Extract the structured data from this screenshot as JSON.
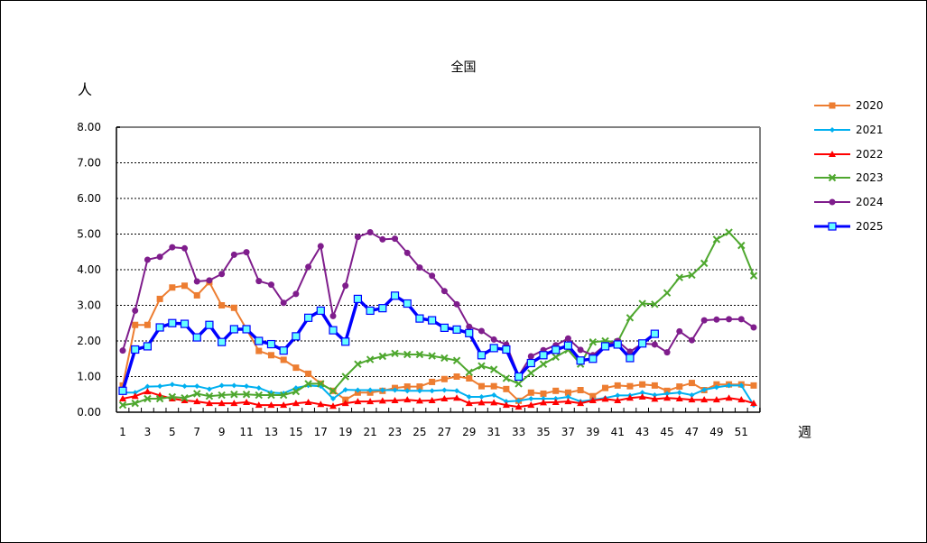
{
  "chart_data": {
    "type": "line",
    "title": "全国",
    "xlabel": "週",
    "ylabel": "人",
    "ylim": [
      0,
      8
    ],
    "yticks": [
      "0.00",
      "1.00",
      "2.00",
      "3.00",
      "4.00",
      "5.00",
      "6.00",
      "7.00",
      "8.00"
    ],
    "xtick_labels": [
      "1",
      "3",
      "5",
      "7",
      "9",
      "11",
      "13",
      "15",
      "17",
      "19",
      "21",
      "23",
      "25",
      "27",
      "29",
      "31",
      "33",
      "35",
      "37",
      "39",
      "41",
      "43",
      "45",
      "47",
      "49",
      "51"
    ],
    "x": [
      1,
      2,
      3,
      4,
      5,
      6,
      7,
      8,
      9,
      10,
      11,
      12,
      13,
      14,
      15,
      16,
      17,
      18,
      19,
      20,
      21,
      22,
      23,
      24,
      25,
      26,
      27,
      28,
      29,
      30,
      31,
      32,
      33,
      34,
      35,
      36,
      37,
      38,
      39,
      40,
      41,
      42,
      43,
      44,
      45,
      46,
      47,
      48,
      49,
      50,
      51,
      52
    ],
    "grid": true,
    "legend_position": "right",
    "series": [
      {
        "name": "2020",
        "color": "#ED7D31",
        "marker": "square",
        "values": [
          0.75,
          2.45,
          2.45,
          3.18,
          3.5,
          3.55,
          3.28,
          3.65,
          3.0,
          2.93,
          2.33,
          1.72,
          1.6,
          1.47,
          1.25,
          1.08,
          0.8,
          0.6,
          0.35,
          0.55,
          0.55,
          0.6,
          0.68,
          0.72,
          0.72,
          0.85,
          0.93,
          1.0,
          0.95,
          0.73,
          0.73,
          0.65,
          0.32,
          0.55,
          0.52,
          0.6,
          0.55,
          0.62,
          0.45,
          0.68,
          0.75,
          0.73,
          0.78,
          0.75,
          0.6,
          0.72,
          0.82,
          0.62,
          0.78,
          0.78,
          0.78,
          0.75
        ]
      },
      {
        "name": "2021",
        "color": "#00B0F0",
        "marker": "diamond",
        "values": [
          0.55,
          0.55,
          0.72,
          0.73,
          0.78,
          0.73,
          0.73,
          0.65,
          0.75,
          0.75,
          0.73,
          0.68,
          0.55,
          0.53,
          0.68,
          0.75,
          0.73,
          0.38,
          0.63,
          0.62,
          0.62,
          0.62,
          0.62,
          0.6,
          0.6,
          0.6,
          0.62,
          0.6,
          0.43,
          0.43,
          0.48,
          0.3,
          0.32,
          0.38,
          0.38,
          0.38,
          0.43,
          0.3,
          0.35,
          0.4,
          0.47,
          0.47,
          0.55,
          0.48,
          0.52,
          0.55,
          0.48,
          0.63,
          0.7,
          0.75,
          0.75,
          0.2
        ]
      },
      {
        "name": "2022",
        "color": "#FF0000",
        "marker": "triangle",
        "values": [
          0.38,
          0.45,
          0.58,
          0.47,
          0.38,
          0.33,
          0.3,
          0.25,
          0.25,
          0.25,
          0.28,
          0.2,
          0.2,
          0.2,
          0.25,
          0.28,
          0.22,
          0.17,
          0.25,
          0.3,
          0.3,
          0.32,
          0.33,
          0.35,
          0.32,
          0.33,
          0.38,
          0.4,
          0.25,
          0.27,
          0.27,
          0.2,
          0.15,
          0.2,
          0.27,
          0.28,
          0.3,
          0.25,
          0.33,
          0.37,
          0.33,
          0.4,
          0.43,
          0.37,
          0.4,
          0.38,
          0.35,
          0.35,
          0.35,
          0.4,
          0.35,
          0.25
        ]
      },
      {
        "name": "2023",
        "color": "#4EA72E",
        "marker": "x",
        "values": [
          0.2,
          0.25,
          0.38,
          0.38,
          0.43,
          0.4,
          0.52,
          0.45,
          0.48,
          0.5,
          0.5,
          0.48,
          0.48,
          0.48,
          0.58,
          0.8,
          0.8,
          0.6,
          1.0,
          1.35,
          1.48,
          1.57,
          1.65,
          1.62,
          1.62,
          1.58,
          1.52,
          1.45,
          1.12,
          1.3,
          1.2,
          0.95,
          0.8,
          1.1,
          1.35,
          1.55,
          1.75,
          1.35,
          1.97,
          2.0,
          1.97,
          2.65,
          3.05,
          3.03,
          3.35,
          3.78,
          3.85,
          4.18,
          4.85,
          5.05,
          4.68,
          3.83
        ]
      },
      {
        "name": "2024",
        "color": "#7F1D8C",
        "marker": "circle",
        "values": [
          1.73,
          2.85,
          4.28,
          4.36,
          4.63,
          4.6,
          3.67,
          3.7,
          3.88,
          4.42,
          4.49,
          3.68,
          3.58,
          3.07,
          3.32,
          4.08,
          4.66,
          2.7,
          3.55,
          4.92,
          5.05,
          4.85,
          4.87,
          4.47,
          4.06,
          3.83,
          3.4,
          3.03,
          2.4,
          2.28,
          2.04,
          1.9,
          1.02,
          1.57,
          1.74,
          1.88,
          2.07,
          1.75,
          1.6,
          1.88,
          2.0,
          1.7,
          1.93,
          1.9,
          1.68,
          2.27,
          2.02,
          2.58,
          2.6,
          2.61,
          2.61,
          2.38
        ]
      },
      {
        "name": "2025",
        "color": "#0000FF",
        "marker": "square-open",
        "marker_fill": "#66FFFF",
        "values": [
          0.6,
          1.76,
          1.85,
          2.38,
          2.5,
          2.48,
          2.1,
          2.45,
          1.97,
          2.33,
          2.33,
          2.0,
          1.91,
          1.73,
          2.13,
          2.65,
          2.85,
          2.3,
          1.98,
          3.18,
          2.85,
          2.92,
          3.27,
          3.05,
          2.63,
          2.58,
          2.37,
          2.32,
          2.22,
          1.6,
          1.8,
          1.76,
          1.0,
          1.38,
          1.6,
          1.75,
          1.87,
          1.45,
          1.5,
          1.85,
          1.9,
          1.52,
          1.93,
          2.2
        ]
      }
    ]
  }
}
